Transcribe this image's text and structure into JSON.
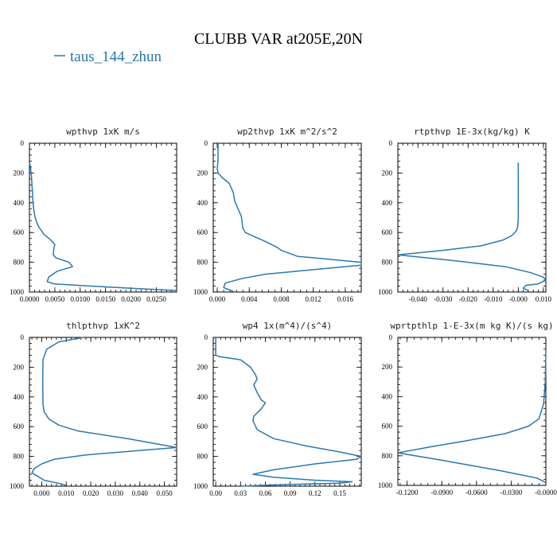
{
  "title": "CLUBB VAR at205E,20N",
  "legend": {
    "label": "taus_144_zhun",
    "color": "#2a78b0"
  },
  "chart_data": [
    {
      "type": "line",
      "title": "wpthvp   1xK m/s",
      "xlim": [
        0,
        0.029
      ],
      "ylim": [
        1000,
        0
      ],
      "xticks": [
        0,
        0.005,
        0.01,
        0.015,
        0.02,
        0.025
      ],
      "xtick_labels": [
        "0.0000",
        "0.0050",
        "0.0100",
        "0.0150",
        "0.0200",
        "0.0250"
      ],
      "yticks": [
        0,
        200,
        400,
        600,
        800,
        1000
      ],
      "ytick_labels": [
        "0",
        "200",
        "400",
        "600",
        "800",
        "1000"
      ],
      "series": [
        {
          "color": "#2a78b0",
          "x": [
            0.0,
            0.0002,
            0.0004,
            0.0006,
            0.0007,
            0.0008,
            0.001,
            0.0013,
            0.0018,
            0.0028,
            0.0042,
            0.005,
            0.0048,
            0.0047,
            0.0052,
            0.0078,
            0.0085,
            0.0055,
            0.0038,
            0.0035,
            0.0048,
            0.012,
            0.02,
            0.029
          ],
          "y": [
            130,
            160,
            230,
            330,
            400,
            430,
            480,
            520,
            560,
            610,
            650,
            680,
            710,
            750,
            770,
            800,
            830,
            860,
            900,
            930,
            945,
            960,
            975,
            990
          ]
        }
      ]
    },
    {
      "type": "line",
      "title": "wp2thvp   1xK m^2/s^2",
      "xlim": [
        -0.0005,
        0.018
      ],
      "ylim": [
        1000,
        0
      ],
      "xticks": [
        0,
        0.004,
        0.008,
        0.012,
        0.016
      ],
      "xtick_labels": [
        "0.000",
        "0.004",
        "0.008",
        "0.012",
        "0.016"
      ],
      "yticks": [
        0,
        200,
        400,
        600,
        800,
        1000
      ],
      "ytick_labels": [
        "0",
        "200",
        "400",
        "600",
        "800",
        "1000"
      ],
      "series": [
        {
          "color": "#2a78b0",
          "x": [
            0.0001,
            0.0001,
            0.0,
            0.0001,
            0.0006,
            0.0015,
            0.002,
            0.0022,
            0.0025,
            0.003,
            0.0032,
            0.0035,
            0.006,
            0.0075,
            0.008,
            0.01,
            0.018,
            0.018,
            0.012,
            0.006,
            0.003,
            0.001,
            0.0008,
            0.002
          ],
          "y": [
            0,
            120,
            170,
            200,
            230,
            270,
            330,
            390,
            430,
            490,
            570,
            600,
            660,
            700,
            720,
            760,
            800,
            820,
            850,
            880,
            910,
            940,
            970,
            995
          ]
        }
      ]
    },
    {
      "type": "line",
      "title": "rtpthvp   1E-3x(kg/kg) K",
      "xlim": [
        -0.048,
        0.011
      ],
      "ylim": [
        1000,
        0
      ],
      "xticks": [
        -0.04,
        -0.03,
        -0.02,
        -0.01,
        0.0,
        0.01
      ],
      "xtick_labels": [
        "-0.040",
        "-0.030",
        "-0.020",
        "-0.010",
        "-0.000",
        "0.010"
      ],
      "yticks": [
        0,
        200,
        400,
        600,
        800,
        1000
      ],
      "ytick_labels": [
        "0",
        "200",
        "400",
        "600",
        "800",
        "1000"
      ],
      "series": [
        {
          "color": "#2a78b0",
          "x": [
            0.0,
            0.0,
            -0.0002,
            -0.0008,
            -0.0025,
            -0.006,
            -0.015,
            -0.03,
            -0.048,
            -0.025,
            -0.005,
            0.005,
            0.01,
            0.011,
            0.008,
            0.003,
            0.002,
            0.004
          ],
          "y": [
            130,
            500,
            560,
            590,
            620,
            650,
            690,
            720,
            750,
            790,
            830,
            870,
            900,
            920,
            945,
            955,
            975,
            990
          ]
        }
      ]
    },
    {
      "type": "line",
      "title": "thlpthvp   1xK^2",
      "xlim": [
        -0.005,
        0.055
      ],
      "ylim": [
        1000,
        0
      ],
      "xticks": [
        0,
        0.01,
        0.02,
        0.03,
        0.04,
        0.05
      ],
      "xtick_labels": [
        "0.000",
        "0.010",
        "0.020",
        "0.030",
        "0.040",
        "0.050"
      ],
      "yticks": [
        0,
        200,
        400,
        600,
        800,
        1000
      ],
      "ytick_labels": [
        "0",
        "200",
        "400",
        "600",
        "800",
        "1000"
      ],
      "series": [
        {
          "color": "#2a78b0",
          "x": [
            0.017,
            0.007,
            0.002,
            0.0005,
            0.0004,
            0.0005,
            0.001,
            0.003,
            0.007,
            0.015,
            0.035,
            0.055,
            0.04,
            0.018,
            0.005,
            0.0,
            -0.003,
            -0.004,
            -0.001,
            0.001,
            0.008,
            0.01
          ],
          "y": [
            0,
            30,
            80,
            150,
            300,
            450,
            500,
            550,
            590,
            630,
            680,
            740,
            760,
            790,
            820,
            850,
            880,
            910,
            940,
            960,
            985,
            995
          ]
        }
      ]
    },
    {
      "type": "line",
      "title": "wp4   1x(m^4)/(s^4)",
      "xlim": [
        -0.003,
        0.176
      ],
      "ylim": [
        1000,
        0
      ],
      "xticks": [
        0,
        0.03,
        0.06,
        0.09,
        0.12,
        0.15
      ],
      "xtick_labels": [
        "0.00",
        "0.03",
        "0.06",
        "0.09",
        "0.12",
        "0.15"
      ],
      "yticks": [
        0,
        200,
        400,
        600,
        800,
        1000
      ],
      "ytick_labels": [
        "0",
        "200",
        "400",
        "600",
        "800",
        "1000"
      ],
      "series": [
        {
          "color": "#2a78b0",
          "x": [
            0.0,
            0.0,
            0.005,
            0.03,
            0.042,
            0.048,
            0.05,
            0.046,
            0.05,
            0.055,
            0.06,
            0.055,
            0.046,
            0.045,
            0.05,
            0.07,
            0.11,
            0.15,
            0.176,
            0.17,
            0.12,
            0.07,
            0.045,
            0.07,
            0.12,
            0.165,
            0.15,
            0.08,
            0.03
          ],
          "y": [
            0,
            120,
            130,
            150,
            200,
            250,
            280,
            320,
            370,
            420,
            440,
            480,
            530,
            560,
            620,
            680,
            730,
            770,
            800,
            820,
            850,
            890,
            920,
            940,
            960,
            970,
            980,
            990,
            1000
          ]
        }
      ]
    },
    {
      "type": "line",
      "title": "wprtpthlp   1-E-3x(m kg K)/(s kg)",
      "xlim": [
        -0.128,
        0.0
      ],
      "ylim": [
        1000,
        0
      ],
      "xticks": [
        -0.12,
        -0.09,
        -0.06,
        -0.03,
        0.0
      ],
      "xtick_labels": [
        "-0.1200",
        "-0.0900",
        "-0.0600",
        "-0.0300",
        "-0.0000"
      ],
      "yticks": [
        0,
        200,
        400,
        600,
        800,
        1000
      ],
      "ytick_labels": [
        "0",
        "200",
        "400",
        "600",
        "800",
        "1000"
      ],
      "series": [
        {
          "color": "#2a78b0",
          "x": [
            0.0,
            -0.0005,
            -0.002,
            -0.006,
            -0.015,
            -0.035,
            -0.07,
            -0.1,
            -0.128,
            -0.09,
            -0.04,
            -0.008,
            0.0
          ],
          "y": [
            80,
            300,
            450,
            550,
            600,
            650,
            700,
            740,
            780,
            830,
            900,
            950,
            980
          ]
        }
      ]
    }
  ]
}
